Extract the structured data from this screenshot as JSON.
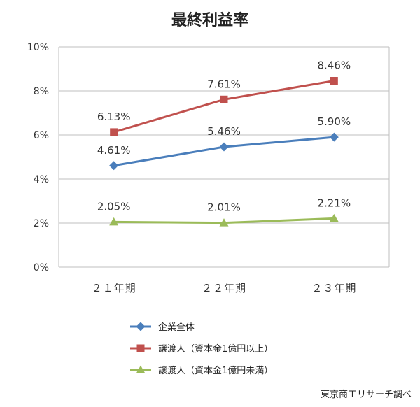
{
  "chart_data": {
    "type": "line",
    "title": "最終利益率",
    "categories": [
      "２１年期",
      "２２年期",
      "２３年期"
    ],
    "ylim": [
      0,
      10
    ],
    "yticks": [
      0,
      2,
      4,
      6,
      8,
      10
    ],
    "ytick_labels": [
      "0%",
      "2%",
      "4%",
      "6%",
      "8%",
      "10%"
    ],
    "grid": true,
    "legend_position": "bottom",
    "series": [
      {
        "name": "企業全体",
        "color": "#4a7ebb",
        "marker": "diamond",
        "values": [
          4.61,
          5.46,
          5.9
        ],
        "labels": [
          "4.61%",
          "5.46%",
          "5.90%"
        ]
      },
      {
        "name": "譲渡人（資本金1億円以上）",
        "color": "#c0504d",
        "marker": "square",
        "values": [
          6.13,
          7.61,
          8.46
        ],
        "labels": [
          "6.13%",
          "7.61%",
          "8.46%"
        ]
      },
      {
        "name": "譲渡人（資本金1億円未満）",
        "color": "#9bbb59",
        "marker": "triangle",
        "values": [
          2.05,
          2.01,
          2.21
        ],
        "labels": [
          "2.05%",
          "2.01%",
          "2.21%"
        ]
      }
    ],
    "source": "東京商工リサーチ調べ"
  }
}
